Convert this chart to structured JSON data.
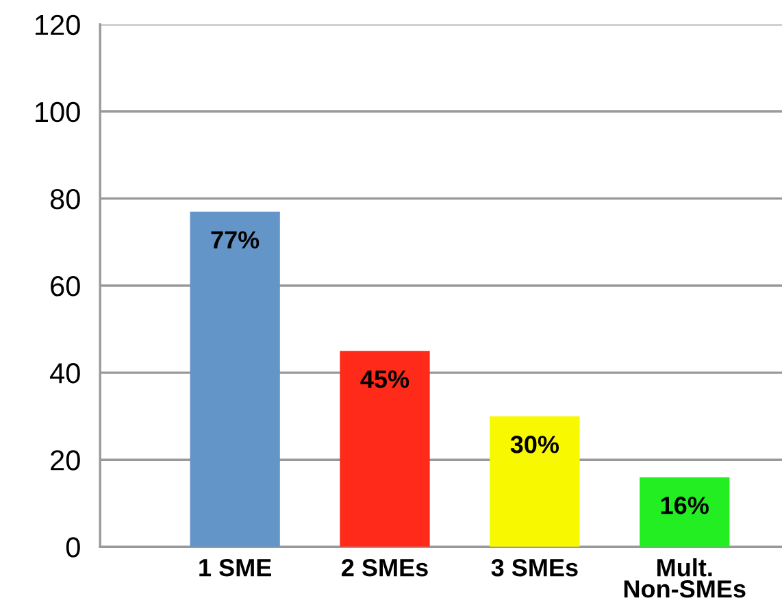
{
  "chart_data": {
    "type": "bar",
    "categories": [
      "1 SME",
      "2 SMEs",
      "3 SMEs",
      "Mult.\nNon-SMEs"
    ],
    "values": [
      77,
      45,
      30,
      16
    ],
    "value_labels": [
      "77%",
      "45%",
      "30%",
      "16%"
    ],
    "colors": [
      "#6495c8",
      "#ff2a1a",
      "#f8f800",
      "#22ee22"
    ],
    "ylim": [
      0,
      120
    ],
    "yticks": [
      0,
      20,
      40,
      60,
      80,
      100,
      120
    ],
    "grid": "y"
  }
}
